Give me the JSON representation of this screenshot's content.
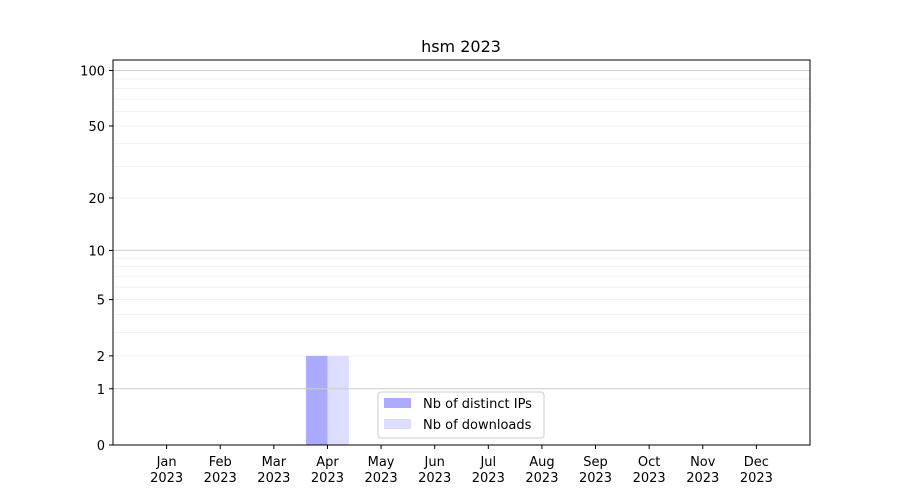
{
  "chart_data": {
    "type": "bar",
    "title": "hsm 2023",
    "xlabel": "",
    "ylabel": "",
    "yscale": "log1p",
    "ylim": [
      0,
      114
    ],
    "yticks": [
      0,
      1,
      2,
      5,
      10,
      20,
      50,
      100
    ],
    "categories": [
      "Jan\n2023",
      "Feb\n2023",
      "Mar\n2023",
      "Apr\n2023",
      "May\n2023",
      "Jun\n2023",
      "Jul\n2023",
      "Aug\n2023",
      "Sep\n2023",
      "Oct\n2023",
      "Nov\n2023",
      "Dec\n2023"
    ],
    "series": [
      {
        "name": "Nb of distinct IPs",
        "color": "#aaaaff",
        "values": [
          0,
          0,
          0,
          2,
          0,
          0,
          0,
          0,
          0,
          0,
          0,
          0
        ]
      },
      {
        "name": "Nb of downloads",
        "color": "#ddddff",
        "values": [
          0,
          0,
          0,
          2,
          0,
          0,
          0,
          0,
          0,
          0,
          0,
          0
        ]
      }
    ],
    "grid": true,
    "legend_position": "lower-center"
  }
}
